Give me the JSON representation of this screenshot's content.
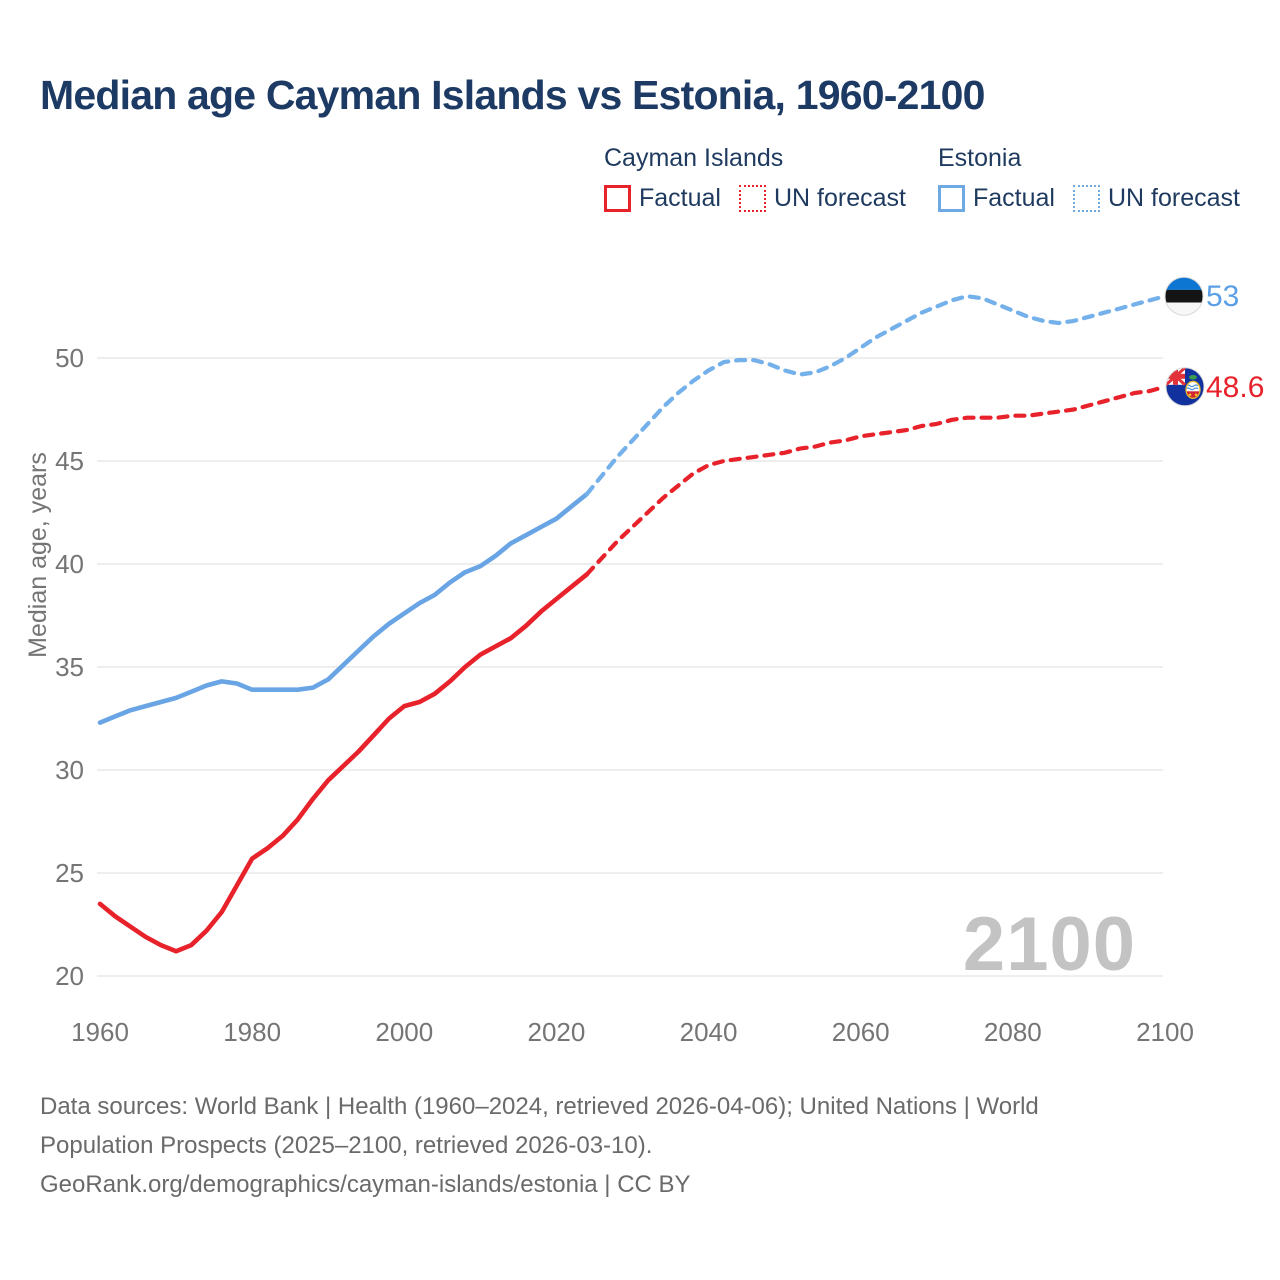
{
  "title": "Median age Cayman Islands vs Estonia, 1960-2100",
  "legend": {
    "groups": [
      {
        "header": "Cayman Islands",
        "color": "#e8222b",
        "items": [
          {
            "label": "Factual",
            "style": "solid"
          },
          {
            "label": "UN forecast",
            "style": "dotted"
          }
        ]
      },
      {
        "header": "Estonia",
        "color": "#6fa9e3",
        "items": [
          {
            "label": "Factual",
            "style": "solid"
          },
          {
            "label": "UN forecast",
            "style": "dotted"
          }
        ]
      }
    ]
  },
  "watermark": "2100",
  "end_labels": {
    "estonia": {
      "text": "53",
      "color": "#5ba0e6"
    },
    "cayman": {
      "text": "48.6",
      "color": "#e8222b"
    }
  },
  "footer": {
    "line1": "Data sources: World Bank | Health (1960–2024, retrieved 2026-04-06); United Nations | World",
    "line2": "Population Prospects (2025–2100, retrieved 2026-03-10).",
    "line3": "GeoRank.org/demographics/cayman-islands/estonia | CC BY"
  },
  "colors": {
    "title_navy": "#1c3a63",
    "axis_gray": "#757575",
    "grid_gray": "#e9e9e9",
    "watermark_gray": "#c3c3c3",
    "footer_gray": "#6a6a6a",
    "cayman_red": "#e8222b",
    "estonia_blue_solid": "#69a5e5",
    "estonia_blue_forecast": "#74b0ea"
  },
  "chart_data": {
    "type": "line",
    "title": "Median age Cayman Islands vs Estonia, 1960-2100",
    "xlabel": "",
    "ylabel": "Median age, years",
    "x_ticks": [
      1960,
      1980,
      2000,
      2020,
      2040,
      2060,
      2080,
      2100
    ],
    "y_ticks": [
      20,
      25,
      30,
      35,
      40,
      45,
      50
    ],
    "xlim": [
      1960,
      2100
    ],
    "ylim": [
      20,
      50
    ],
    "grid": "horizontal-only",
    "legend_position": "top-right",
    "series": [
      {
        "name": "Estonia — Factual",
        "color": "#69a5e5",
        "style": "solid",
        "x": [
          1960,
          1962,
          1964,
          1966,
          1968,
          1970,
          1972,
          1974,
          1976,
          1978,
          1980,
          1982,
          1984,
          1986,
          1988,
          1990,
          1992,
          1994,
          1996,
          1998,
          2000,
          2002,
          2004,
          2006,
          2008,
          2010,
          2012,
          2014,
          2016,
          2018,
          2020,
          2022,
          2024
        ],
        "values": [
          32.3,
          32.6,
          32.9,
          33.1,
          33.3,
          33.5,
          33.8,
          34.1,
          34.3,
          34.2,
          33.9,
          33.9,
          33.9,
          33.9,
          34.0,
          34.4,
          35.1,
          35.8,
          36.5,
          37.1,
          37.6,
          38.1,
          38.5,
          39.1,
          39.6,
          39.9,
          40.4,
          41.0,
          41.4,
          41.8,
          42.2,
          42.8,
          43.4
        ]
      },
      {
        "name": "Estonia — UN forecast",
        "color": "#74b0ea",
        "style": "dashed",
        "x": [
          2024,
          2026,
          2028,
          2030,
          2032,
          2034,
          2036,
          2038,
          2040,
          2042,
          2044,
          2046,
          2048,
          2050,
          2052,
          2054,
          2056,
          2058,
          2060,
          2062,
          2064,
          2066,
          2068,
          2070,
          2072,
          2074,
          2076,
          2078,
          2080,
          2082,
          2084,
          2086,
          2088,
          2090,
          2092,
          2094,
          2096,
          2098,
          2100
        ],
        "values": [
          43.4,
          44.3,
          45.2,
          46.0,
          46.8,
          47.6,
          48.3,
          48.9,
          49.4,
          49.8,
          49.9,
          49.9,
          49.7,
          49.4,
          49.2,
          49.3,
          49.6,
          50.0,
          50.5,
          51.0,
          51.4,
          51.8,
          52.2,
          52.5,
          52.8,
          53.0,
          52.9,
          52.6,
          52.3,
          52.0,
          51.8,
          51.7,
          51.8,
          52.0,
          52.2,
          52.4,
          52.6,
          52.8,
          53.0
        ]
      },
      {
        "name": "Cayman Islands — Factual",
        "color": "#e8222b",
        "style": "solid",
        "x": [
          1960,
          1962,
          1964,
          1966,
          1968,
          1970,
          1972,
          1974,
          1976,
          1978,
          1980,
          1982,
          1984,
          1986,
          1988,
          1990,
          1992,
          1994,
          1996,
          1998,
          2000,
          2002,
          2004,
          2006,
          2008,
          2010,
          2012,
          2014,
          2016,
          2018,
          2020,
          2022,
          2024
        ],
        "values": [
          23.5,
          22.9,
          22.4,
          21.9,
          21.5,
          21.2,
          21.5,
          22.2,
          23.1,
          24.4,
          25.7,
          26.2,
          26.8,
          27.6,
          28.6,
          29.5,
          30.2,
          30.9,
          31.7,
          32.5,
          33.1,
          33.3,
          33.7,
          34.3,
          35.0,
          35.6,
          36.0,
          36.4,
          37.0,
          37.7,
          38.3,
          38.9,
          39.5
        ]
      },
      {
        "name": "Cayman Islands — UN forecast",
        "color": "#e8222b",
        "style": "dashed",
        "x": [
          2024,
          2026,
          2028,
          2030,
          2032,
          2034,
          2036,
          2038,
          2040,
          2042,
          2044,
          2046,
          2048,
          2050,
          2052,
          2054,
          2056,
          2058,
          2060,
          2062,
          2064,
          2066,
          2068,
          2070,
          2072,
          2074,
          2076,
          2078,
          2080,
          2082,
          2084,
          2086,
          2088,
          2090,
          2092,
          2094,
          2096,
          2098,
          2100
        ],
        "values": [
          39.5,
          40.3,
          41.1,
          41.8,
          42.5,
          43.2,
          43.8,
          44.4,
          44.8,
          45.0,
          45.1,
          45.2,
          45.3,
          45.4,
          45.6,
          45.7,
          45.9,
          46.0,
          46.2,
          46.3,
          46.4,
          46.5,
          46.7,
          46.8,
          47.0,
          47.1,
          47.1,
          47.1,
          47.2,
          47.2,
          47.3,
          47.4,
          47.5,
          47.7,
          47.9,
          48.1,
          48.3,
          48.4,
          48.6
        ]
      }
    ],
    "end_values": {
      "estonia_2100": 53,
      "cayman_2100": 48.6
    }
  }
}
